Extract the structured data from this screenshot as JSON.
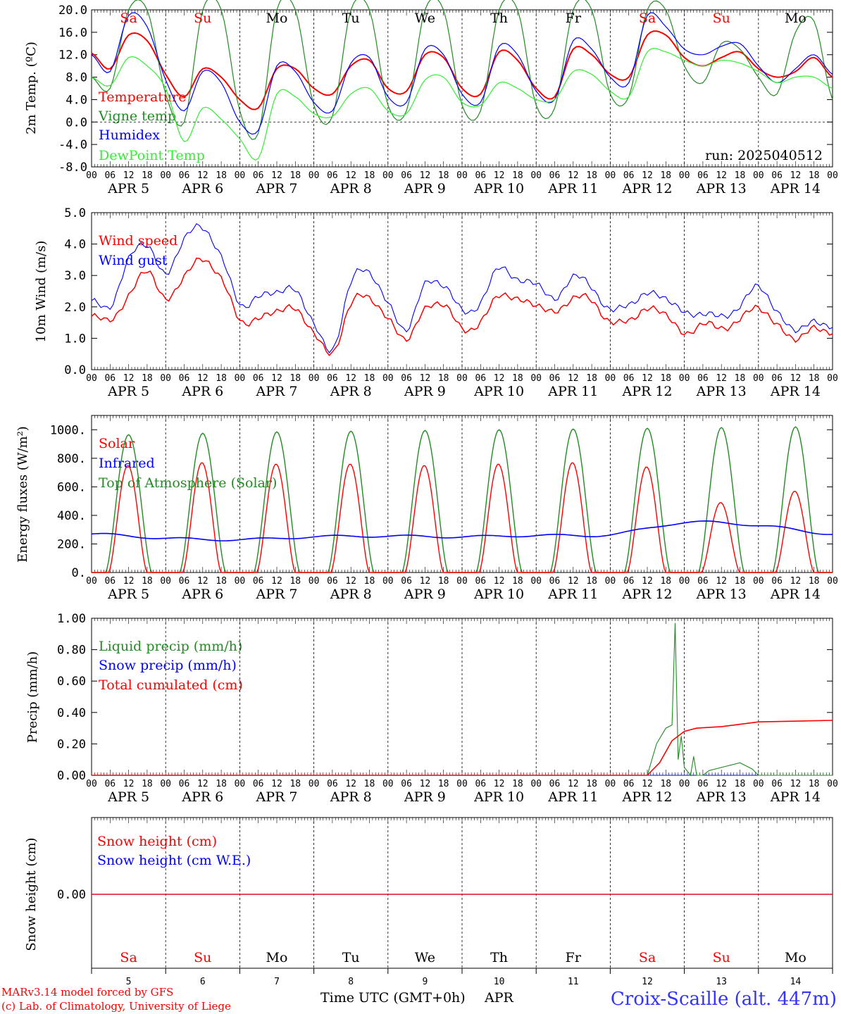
{
  "chart_data": [
    {
      "type": "line",
      "ylabel": "2m Temp. (ºC)",
      "ylim": [
        -8,
        20
      ],
      "yticks": [
        20.0,
        16.0,
        12.0,
        8.0,
        4.0,
        0.0,
        -4.0,
        -8.0
      ],
      "ytick_labels": [
        "20.0",
        "16.0",
        "12.0",
        "8.0",
        "4.0",
        "0.0",
        "-4.0",
        "-8.0"
      ],
      "annotation": "run: 2025040512",
      "weekday_labels": [
        "Sa",
        "Su",
        "Mo",
        "Tu",
        "We",
        "Th",
        "Fr",
        "Sa",
        "Su",
        "Mo"
      ],
      "hours": [
        0,
        6,
        12,
        18,
        24,
        30,
        36,
        42,
        48,
        54,
        60,
        66,
        72,
        78,
        84,
        90,
        96,
        102,
        108,
        114,
        120,
        126,
        132,
        138,
        144,
        150,
        156,
        162,
        168,
        174,
        180,
        186,
        192,
        198,
        204,
        210,
        216,
        222,
        228,
        234,
        240
      ],
      "series": [
        {
          "name": "Temperature",
          "color": "#ff0000",
          "values": [
            12.3,
            9.5,
            15.5,
            14.5,
            8.5,
            4.5,
            9.5,
            8.0,
            4.0,
            2.5,
            9.5,
            9.5,
            6.0,
            5.0,
            10.0,
            11.0,
            6.0,
            5.5,
            12.0,
            11.5,
            6.0,
            5.0,
            12.5,
            11.0,
            6.0,
            4.5,
            13.0,
            12.0,
            8.5,
            8.0,
            15.5,
            15.5,
            11.5,
            10.0,
            11.5,
            12.5,
            9.5,
            8.0,
            9.0,
            11.5,
            8.0
          ]
        },
        {
          "name": "Vigne temp",
          "color": "#228b22",
          "values": [
            8.0,
            6.0,
            20.0,
            20.0,
            5.0,
            0.0,
            20.0,
            20.0,
            2.0,
            -2.0,
            20.0,
            20.0,
            3.0,
            1.0,
            20.0,
            20.0,
            3.0,
            2.0,
            20.0,
            20.0,
            3.0,
            2.0,
            20.0,
            20.0,
            3.0,
            2.5,
            20.0,
            20.0,
            5.0,
            4.5,
            20.0,
            20.0,
            10.0,
            7.0,
            14.0,
            13.0,
            8.0,
            5.0,
            16.0,
            18.0,
            4.0
          ]
        },
        {
          "name": "Humidex",
          "color": "#0000ff",
          "values": [
            12.0,
            9.0,
            19.0,
            17.0,
            7.5,
            2.0,
            9.0,
            7.0,
            0.0,
            -1.5,
            10.0,
            9.0,
            3.5,
            2.0,
            10.5,
            11.5,
            4.5,
            3.5,
            13.0,
            12.0,
            5.0,
            3.5,
            13.5,
            12.0,
            5.5,
            4.0,
            14.5,
            13.0,
            8.0,
            7.0,
            19.0,
            17.0,
            13.0,
            12.0,
            13.5,
            14.0,
            10.0,
            7.0,
            9.5,
            12.0,
            8.5
          ]
        },
        {
          "name": "DewPoint Temp",
          "color": "#33ee33",
          "values": [
            8.0,
            6.5,
            11.5,
            10.0,
            6.0,
            -3.5,
            2.5,
            0.5,
            -3.0,
            -6.5,
            5.0,
            4.5,
            1.5,
            1.0,
            5.0,
            6.0,
            2.0,
            1.5,
            7.5,
            8.0,
            3.5,
            3.0,
            7.0,
            6.0,
            4.0,
            4.0,
            9.0,
            8.5,
            5.5,
            4.5,
            12.5,
            12.5,
            11.0,
            10.0,
            11.0,
            10.5,
            9.0,
            7.0,
            8.0,
            8.0,
            6.0
          ]
        }
      ]
    },
    {
      "type": "line",
      "ylabel": "10m Wind (m/s)",
      "ylim": [
        0,
        5
      ],
      "yticks": [
        5.0,
        4.0,
        3.0,
        2.0,
        1.0,
        0.0
      ],
      "ytick_labels": [
        "5.0",
        "4.0",
        "3.0",
        "2.0",
        "1.0",
        "0.0"
      ],
      "hours": [
        0,
        6,
        12,
        18,
        24,
        30,
        36,
        42,
        48,
        54,
        60,
        66,
        72,
        78,
        84,
        90,
        96,
        102,
        108,
        114,
        120,
        126,
        132,
        138,
        144,
        150,
        156,
        162,
        168,
        174,
        180,
        186,
        192,
        198,
        204,
        210,
        216,
        222,
        228,
        234,
        240
      ],
      "series": [
        {
          "name": "Wind speed",
          "color": "#ff0000",
          "values": [
            1.7,
            1.6,
            2.3,
            3.2,
            2.2,
            3.0,
            3.5,
            2.9,
            1.6,
            1.6,
            1.9,
            1.9,
            1.2,
            0.5,
            2.1,
            2.3,
            1.6,
            1.0,
            1.9,
            2.1,
            1.3,
            1.5,
            2.4,
            2.2,
            2.1,
            1.8,
            2.3,
            2.2,
            1.5,
            1.6,
            1.9,
            1.8,
            1.1,
            1.5,
            1.3,
            1.6,
            2.0,
            1.4,
            1.0,
            1.3,
            1.2
          ]
        },
        {
          "name": "Wind gust",
          "color": "#0000ff",
          "values": [
            2.2,
            2.0,
            3.5,
            4.0,
            3.0,
            4.2,
            4.5,
            3.6,
            2.1,
            2.3,
            2.5,
            2.5,
            1.5,
            0.6,
            2.8,
            3.1,
            2.1,
            1.3,
            2.7,
            2.7,
            1.9,
            2.1,
            3.3,
            2.8,
            2.8,
            2.2,
            3.0,
            2.6,
            1.9,
            2.1,
            2.4,
            2.3,
            1.8,
            1.8,
            1.7,
            2.0,
            2.7,
            1.8,
            1.3,
            1.5,
            1.4
          ]
        }
      ]
    },
    {
      "type": "line",
      "ylabel": "Energy fluxes (W/m²)",
      "ylim": [
        0,
        1100
      ],
      "yticks": [
        1000,
        800,
        600,
        400,
        200,
        0
      ],
      "ytick_labels": [
        "1000.",
        "800.",
        "600.",
        "400.",
        "200.",
        "0."
      ],
      "series": [
        {
          "name": "Solar",
          "color": "#ff0000",
          "daily_peak": [
            750,
            770,
            760,
            760,
            750,
            760,
            770,
            740,
            490,
            570
          ]
        },
        {
          "name": "Infrared",
          "color": "#0000ff",
          "hours": [
            0,
            24,
            48,
            72,
            96,
            120,
            144,
            168,
            192,
            216,
            240
          ],
          "values": [
            270,
            240,
            230,
            250,
            255,
            250,
            260,
            265,
            350,
            330,
            270
          ]
        },
        {
          "name": "Top of Atmosphere (Solar)",
          "color": "#228b22",
          "daily_peak": [
            965,
            975,
            985,
            990,
            995,
            1000,
            1005,
            1010,
            1015,
            1020
          ]
        }
      ]
    },
    {
      "type": "line",
      "ylabel": "Precip (mm/h)",
      "ylim": [
        0,
        1.0
      ],
      "yticks": [
        1.0,
        0.8,
        0.6,
        0.4,
        0.2,
        0.0
      ],
      "ytick_labels": [
        "1.00",
        "0.80",
        "0.60",
        "0.40",
        "0.20",
        "0.00"
      ],
      "series": [
        {
          "name": "Liquid precip (mm/h)",
          "color": "#228b22",
          "hours": [
            0,
            180,
            183,
            186,
            188,
            189,
            190,
            191,
            192,
            194,
            195,
            196,
            198,
            200,
            210,
            214,
            216,
            240
          ],
          "values": [
            0,
            0,
            0.2,
            0.3,
            0.32,
            0.97,
            0.1,
            0.25,
            0.05,
            0.0,
            0.12,
            0.0,
            0.0,
            0.03,
            0.08,
            0.04,
            0.0,
            0.0
          ]
        },
        {
          "name": "Snow precip (mm/h)",
          "color": "#0000ff",
          "hours": [
            0,
            240
          ],
          "values": [
            0,
            0
          ]
        },
        {
          "name": "Total cumulated (cm)",
          "color": "#ff0000",
          "hours": [
            0,
            180,
            184,
            188,
            192,
            196,
            204,
            216,
            240
          ],
          "values": [
            0,
            0,
            0.08,
            0.22,
            0.28,
            0.3,
            0.31,
            0.34,
            0.35
          ]
        }
      ]
    },
    {
      "type": "line",
      "ylabel": "Snow height (cm)",
      "yticks": [
        0.0
      ],
      "ytick_labels": [
        "0.00"
      ],
      "series": [
        {
          "name": "Snow height (cm)",
          "color": "#ff0000",
          "hours": [
            0,
            240
          ],
          "values": [
            0,
            0
          ]
        },
        {
          "name": "Snow height (cm W.E.)",
          "color": "#0000ff",
          "hours": [
            0,
            240
          ],
          "values": [
            0,
            0
          ]
        }
      ],
      "weekday_labels": [
        "Sa",
        "Su",
        "Mo",
        "Tu",
        "We",
        "Th",
        "Fr",
        "Sa",
        "Su",
        "Mo"
      ],
      "day_numbers": [
        "5",
        "6",
        "7",
        "8",
        "9",
        "10",
        "11",
        "12",
        "13",
        "14"
      ]
    }
  ],
  "xaxis": {
    "hour_labels": [
      "00",
      "06",
      "12",
      "18"
    ],
    "final_label": "00",
    "month_label": "APR",
    "day_numbers": [
      "5",
      "6",
      "7",
      "8",
      "9",
      "10",
      "11",
      "12",
      "13",
      "14"
    ],
    "title": "Time UTC (GMT+0h)",
    "month_title": "APR"
  },
  "footer": {
    "credit_line1": "MARv3.14 model forced by GFS",
    "credit_line2": "(c) Lab. of Climatology, University of Liege",
    "station": "Croix-Scaille (alt. 447m)"
  },
  "colors": {
    "red": "#ff0000",
    "blue": "#0000ff",
    "green": "#228b22",
    "light_green": "#33ee33",
    "weekend": "#ff0000"
  }
}
